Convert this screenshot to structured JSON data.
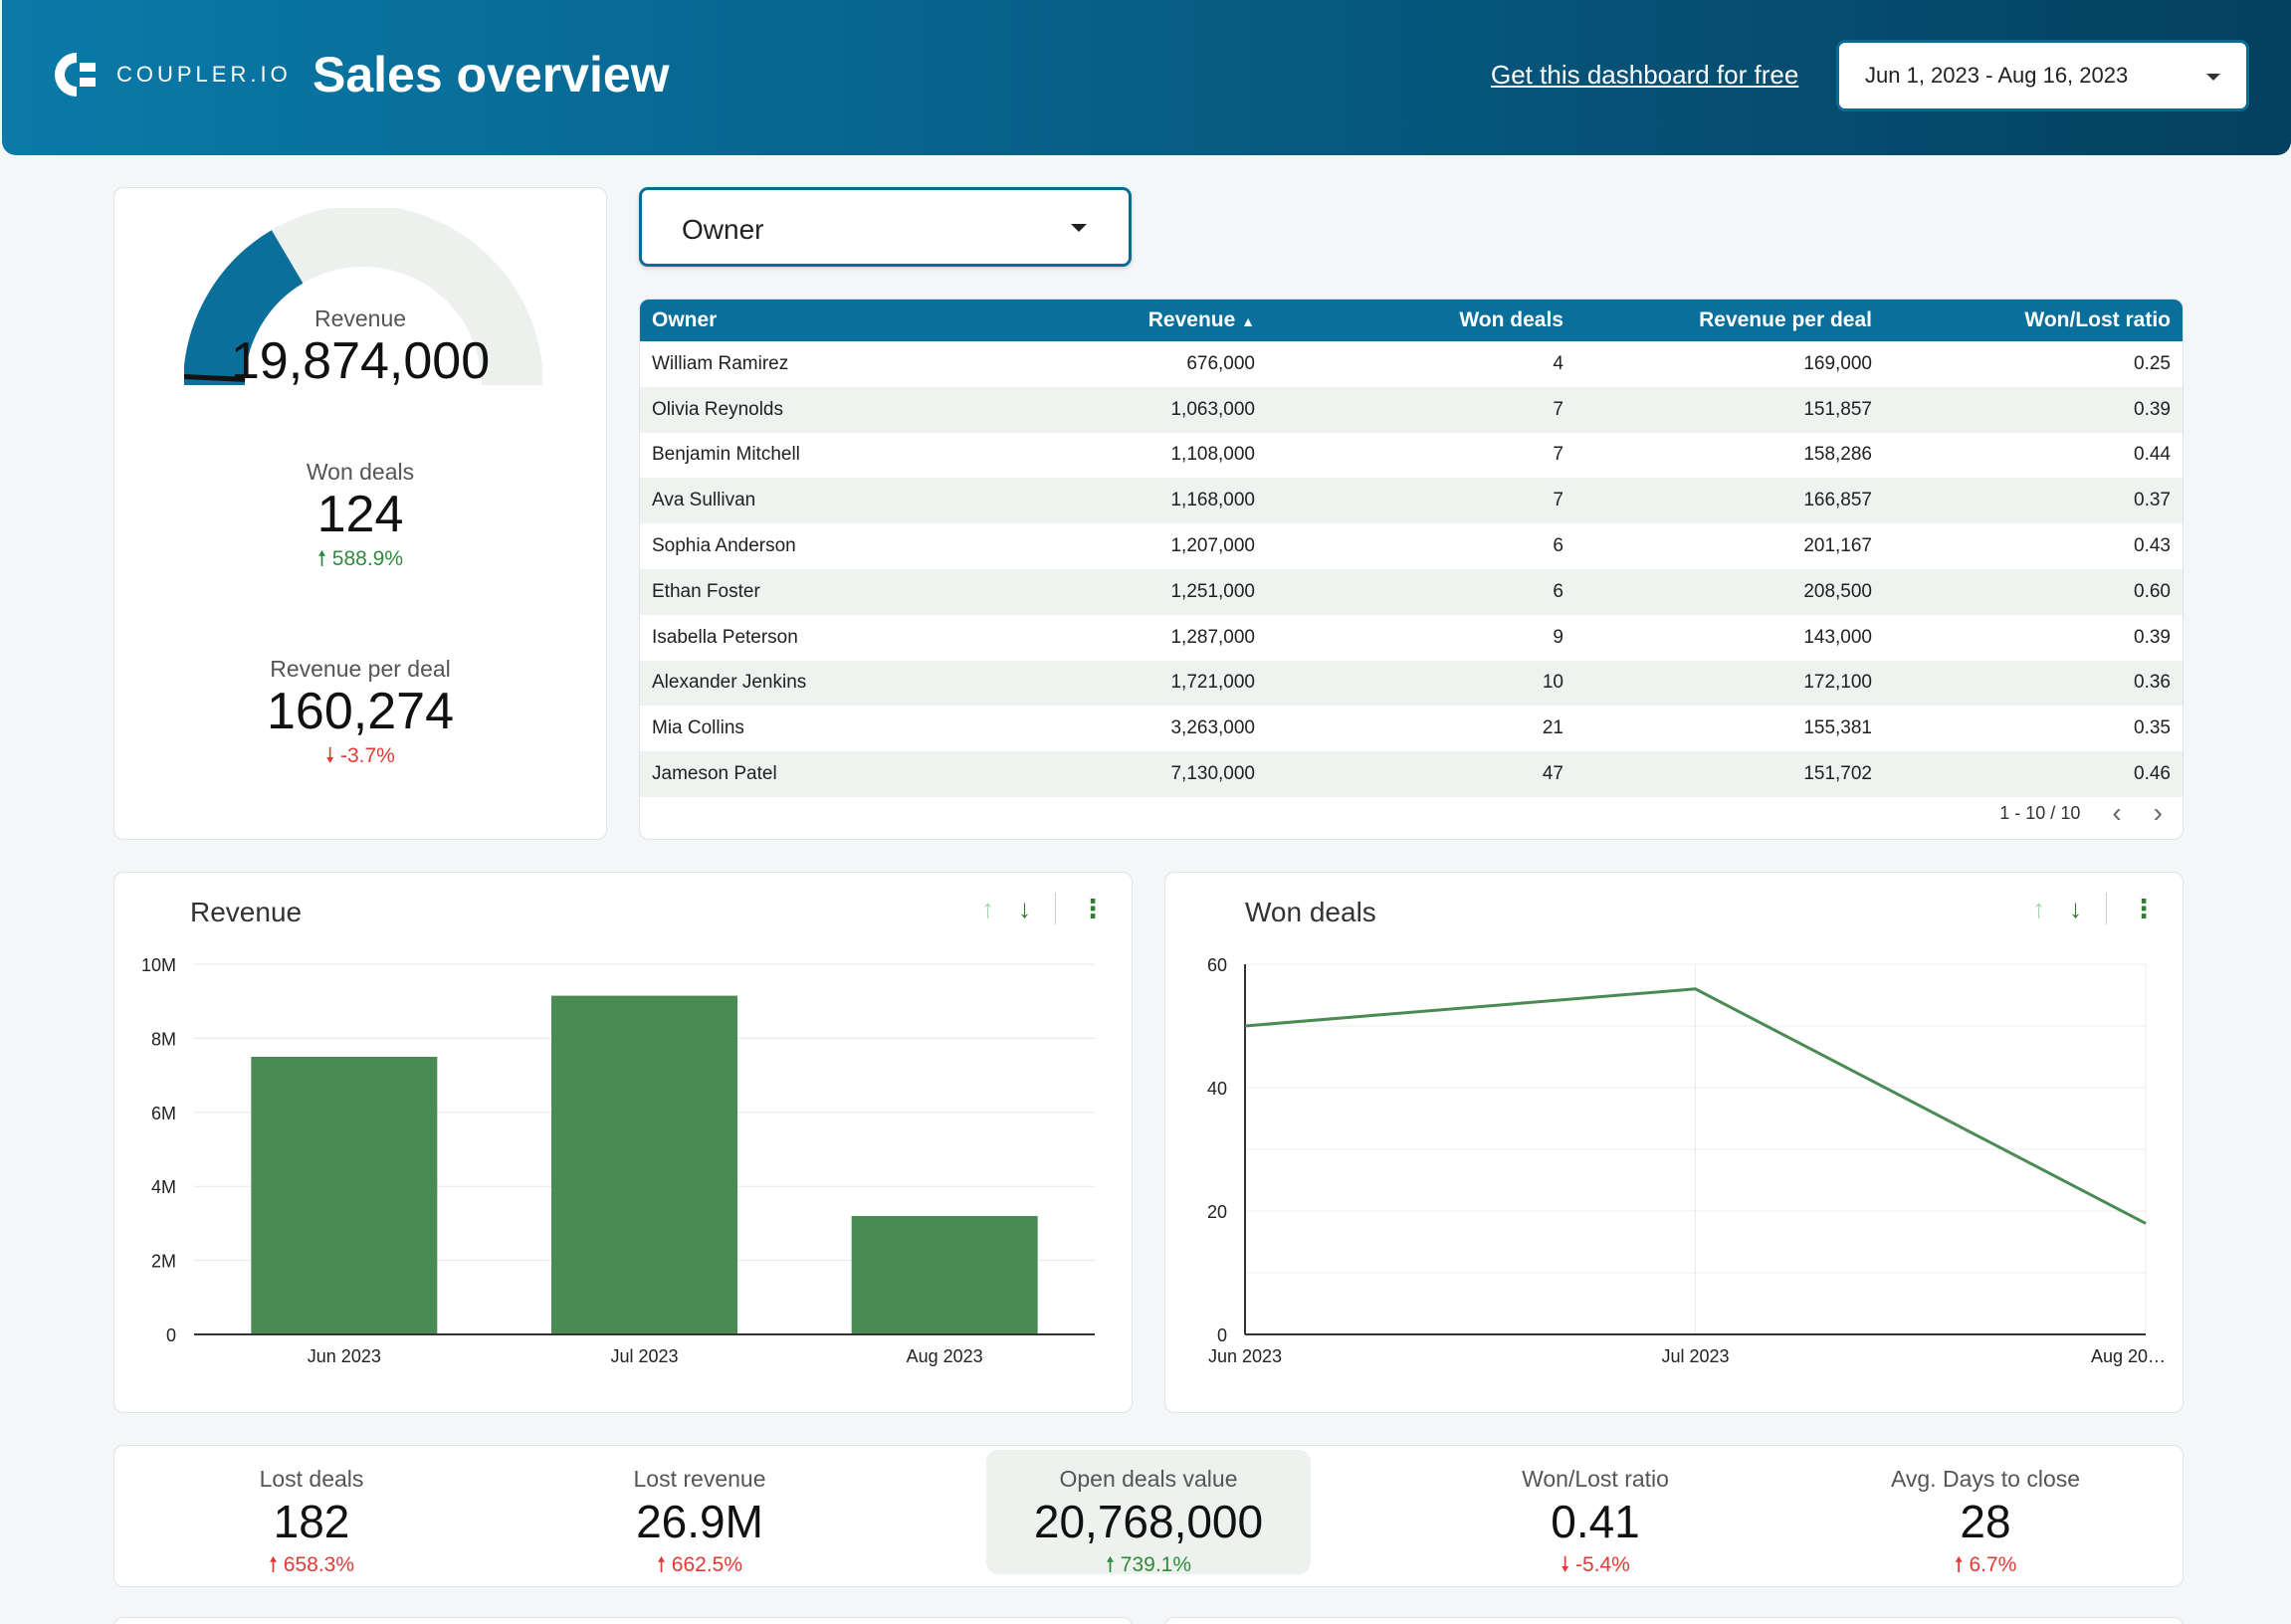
{
  "header": {
    "brand": "COUPLER.IO",
    "title": "Sales overview",
    "get_link": "Get this dashboard for free",
    "date_range": "Jun 1, 2023 - Aug 16, 2023"
  },
  "kpi": {
    "revenue_label": "Revenue",
    "revenue_value": "19,874,000",
    "revenue_gauge_fraction": 0.33,
    "won_label": "Won deals",
    "won_value": "124",
    "won_delta": "588.9%",
    "rpd_label": "Revenue per deal",
    "rpd_value": "160,274",
    "rpd_delta": "-3.7%"
  },
  "owner_filter": {
    "label": "Owner"
  },
  "table": {
    "headers": [
      "Owner",
      "Revenue",
      "Won deals",
      "Revenue per deal",
      "Won/Lost ratio"
    ],
    "rows": [
      [
        "William Ramirez",
        "676,000",
        "4",
        "169,000",
        "0.25"
      ],
      [
        "Olivia Reynolds",
        "1,063,000",
        "7",
        "151,857",
        "0.39"
      ],
      [
        "Benjamin Mitchell",
        "1,108,000",
        "7",
        "158,286",
        "0.44"
      ],
      [
        "Ava Sullivan",
        "1,168,000",
        "7",
        "166,857",
        "0.37"
      ],
      [
        "Sophia Anderson",
        "1,207,000",
        "6",
        "201,167",
        "0.43"
      ],
      [
        "Ethan Foster",
        "1,251,000",
        "6",
        "208,500",
        "0.60"
      ],
      [
        "Isabella Peterson",
        "1,287,000",
        "9",
        "143,000",
        "0.39"
      ],
      [
        "Alexander Jenkins",
        "1,721,000",
        "10",
        "172,100",
        "0.36"
      ],
      [
        "Mia Collins",
        "3,263,000",
        "21",
        "155,381",
        "0.35"
      ],
      [
        "Jameson Patel",
        "7,130,000",
        "47",
        "151,702",
        "0.46"
      ]
    ],
    "pager": "1 - 10 / 10"
  },
  "chart_data": [
    {
      "type": "bar",
      "title": "Revenue",
      "categories": [
        "Jun 2023",
        "Jul 2023",
        "Aug 2023"
      ],
      "values": [
        7500000,
        9150000,
        3200000
      ],
      "ylim": [
        0,
        10000000
      ],
      "yticks": [
        "0",
        "2M",
        "4M",
        "6M",
        "8M",
        "10M"
      ],
      "color": "#4a8a53"
    },
    {
      "type": "line",
      "title": "Won deals",
      "categories": [
        "Jun 2023",
        "Jul 2023",
        "Aug 20…"
      ],
      "values": [
        50,
        56,
        18
      ],
      "ylim": [
        0,
        60
      ],
      "yticks": [
        "0",
        "20",
        "40",
        "60"
      ],
      "color": "#4a8a53"
    }
  ],
  "bottom_kpis": [
    {
      "label": "Lost deals",
      "value": "182",
      "delta": "658.3%",
      "dir": "up",
      "neg": true
    },
    {
      "label": "Lost revenue",
      "value": "26.9M",
      "delta": "662.5%",
      "dir": "up",
      "neg": true
    },
    {
      "label": "Open deals value",
      "value": "20,768,000",
      "delta": "739.1%",
      "dir": "up",
      "neg": false
    },
    {
      "label": "Won/Lost ratio",
      "value": "0.41",
      "delta": "-5.4%",
      "dir": "down",
      "neg": true
    },
    {
      "label": "Avg. Days to close",
      "value": "28",
      "delta": "6.7%",
      "dir": "up",
      "neg": true
    }
  ],
  "colors": {
    "header_start": "#0a7aa8",
    "header_end": "#04405f",
    "gauge_fill": "#0b6f9c",
    "gauge_track": "#edf1ed",
    "positive": "#2e8b3a",
    "negative": "#e53935"
  }
}
